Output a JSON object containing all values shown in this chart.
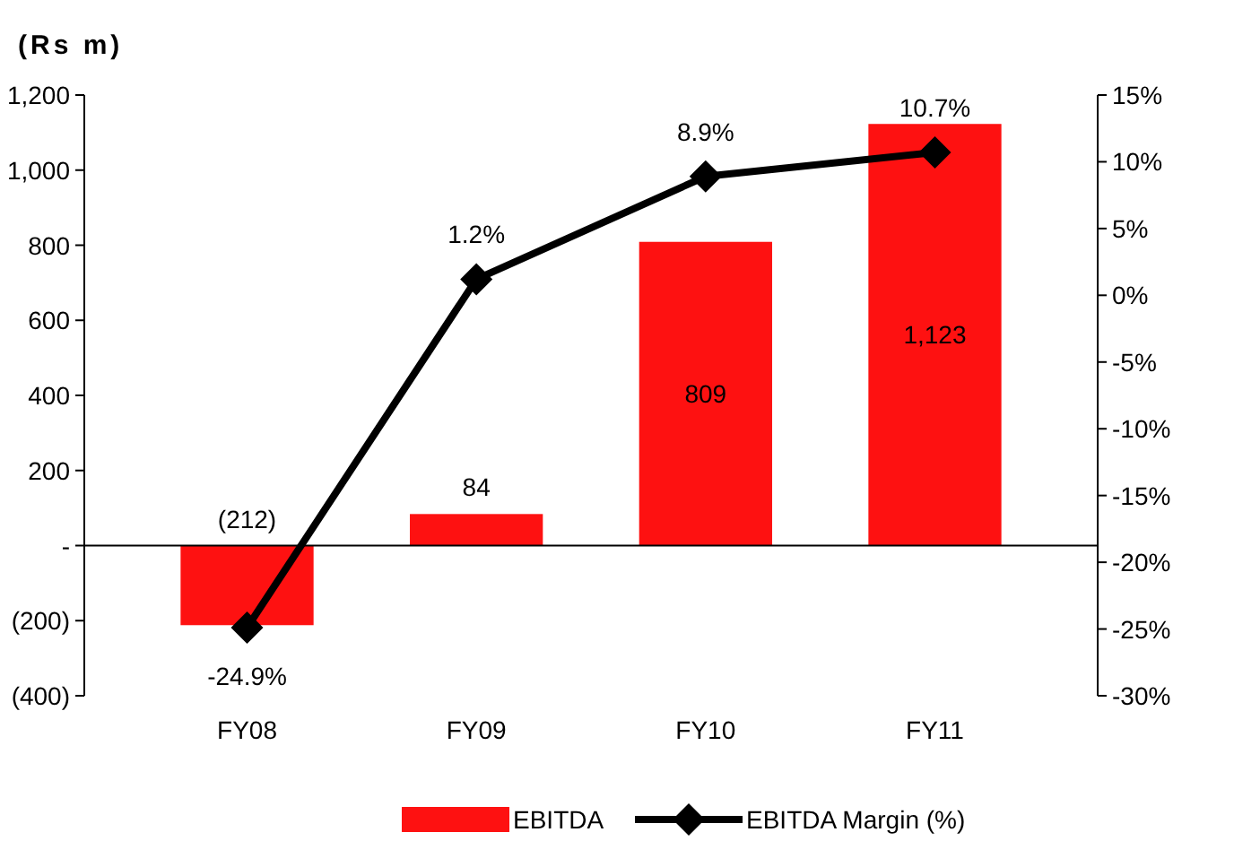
{
  "chart_data": {
    "type": "bar",
    "title": "(Rs m)",
    "categories": [
      "FY08",
      "FY09",
      "FY10",
      "FY11"
    ],
    "series": [
      {
        "name": "EBITDA",
        "color": "#fe1111",
        "values": [
          -212,
          84,
          809,
          1123
        ],
        "value_labels": [
          "(212)",
          "84",
          "809",
          "1,123"
        ]
      },
      {
        "name": "EBITDA Margin (%)",
        "type": "line",
        "axis": "y2",
        "color": "#000000",
        "values": [
          -24.9,
          1.2,
          8.9,
          10.7
        ],
        "value_labels": [
          "-24.9%",
          "1.2%",
          "8.9%",
          "10.7%"
        ],
        "marker": "diamond",
        "line_style": "solid"
      }
    ],
    "ylim": [
      -400,
      1200
    ],
    "yticks": [
      {
        "value": -400,
        "label": "(400)"
      },
      {
        "value": -200,
        "label": "(200)"
      },
      {
        "value": 0,
        "label": "-"
      },
      200,
      400,
      600,
      800,
      {
        "value": 1000,
        "label": "1,000"
      },
      {
        "value": 1200,
        "label": "1,200"
      }
    ],
    "y2lim": [
      -30,
      15
    ],
    "y2ticks": [
      {
        "value": -30,
        "label": "-30%"
      },
      {
        "value": -25,
        "label": "-25%"
      },
      {
        "value": -20,
        "label": "-20%"
      },
      {
        "value": -15,
        "label": "-15%"
      },
      {
        "value": -10,
        "label": "-10%"
      },
      {
        "value": -5,
        "label": "-5%"
      },
      {
        "value": 0,
        "label": "0%"
      },
      {
        "value": 5,
        "label": "5%"
      },
      {
        "value": 10,
        "label": "10%"
      },
      {
        "value": 15,
        "label": "15%"
      }
    ],
    "legend": "bottom"
  }
}
